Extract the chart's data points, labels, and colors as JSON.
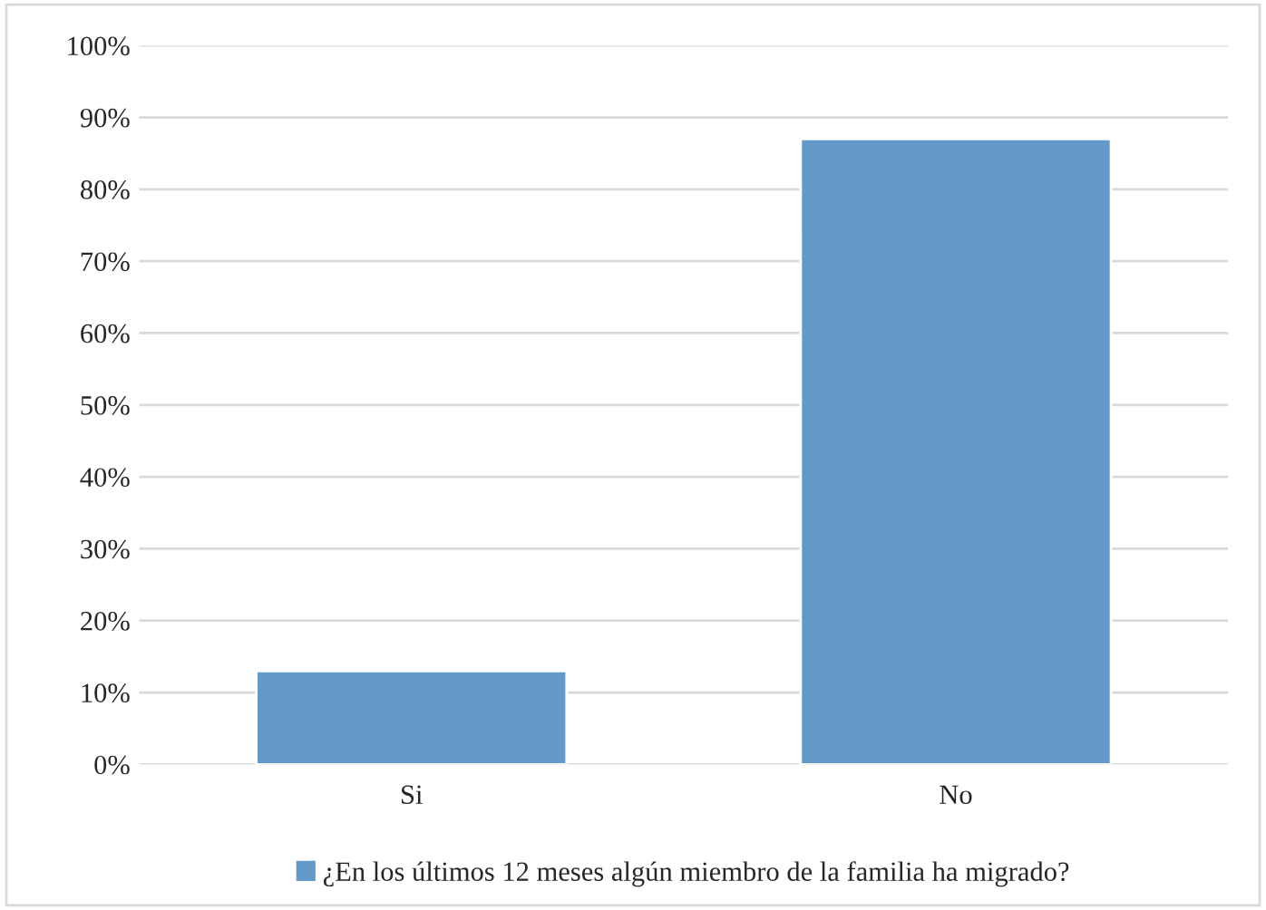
{
  "chart_data": {
    "type": "bar",
    "categories": [
      "Si",
      "No"
    ],
    "series": [
      {
        "name": "¿En los últimos 12 meses algún miembro de la familia ha migrado?",
        "color": "#6399c8",
        "values": [
          13,
          87
        ]
      }
    ],
    "ylim": [
      0,
      100
    ],
    "yticks": [
      {
        "value": 0,
        "label": "0%"
      },
      {
        "value": 10,
        "label": "10%"
      },
      {
        "value": 20,
        "label": "20%"
      },
      {
        "value": 30,
        "label": "30%"
      },
      {
        "value": 40,
        "label": "40%"
      },
      {
        "value": 50,
        "label": "50%"
      },
      {
        "value": 60,
        "label": "60%"
      },
      {
        "value": 70,
        "label": "70%"
      },
      {
        "value": 80,
        "label": "80%"
      },
      {
        "value": 90,
        "label": "90%"
      },
      {
        "value": 100,
        "label": "100%"
      }
    ],
    "grid": "y",
    "legend": "bottom"
  }
}
